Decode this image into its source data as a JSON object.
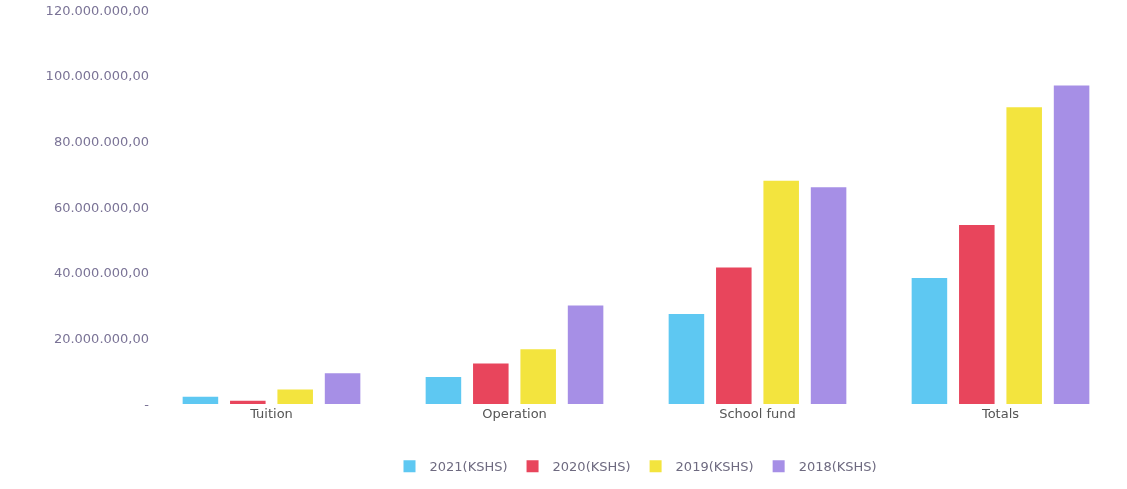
{
  "chart_data": {
    "type": "bar",
    "categories": [
      "Tuition",
      "Operation",
      "School fund",
      "Totals"
    ],
    "series": [
      {
        "name": "2021(KSHS)",
        "color": "#5ec8f2",
        "values": [
          2200000,
          8200000,
          27400000,
          38400000
        ]
      },
      {
        "name": "2020(KSHS)",
        "color": "#e8455c",
        "values": [
          1000000,
          12300000,
          41600000,
          54500000
        ]
      },
      {
        "name": "2019(KSHS)",
        "color": "#f3e43e",
        "values": [
          4400000,
          16700000,
          68000000,
          90400000
        ]
      },
      {
        "name": "2018(KSHS)",
        "color": "#a68fe6",
        "values": [
          9400000,
          30000000,
          66000000,
          97000000
        ]
      }
    ],
    "ylim": [
      0,
      120000000
    ],
    "yticks": [
      {
        "value": 0,
        "label": "-"
      },
      {
        "value": 20000000,
        "label": "20.000.000,00"
      },
      {
        "value": 40000000,
        "label": "40.000.000,00"
      },
      {
        "value": 60000000,
        "label": "60.000.000,00"
      },
      {
        "value": 80000000,
        "label": "80.000.000,00"
      },
      {
        "value": 100000000,
        "label": "100.000.000,00"
      },
      {
        "value": 120000000,
        "label": "120.000.000,00"
      }
    ],
    "grid": false,
    "legend": "bottom"
  }
}
